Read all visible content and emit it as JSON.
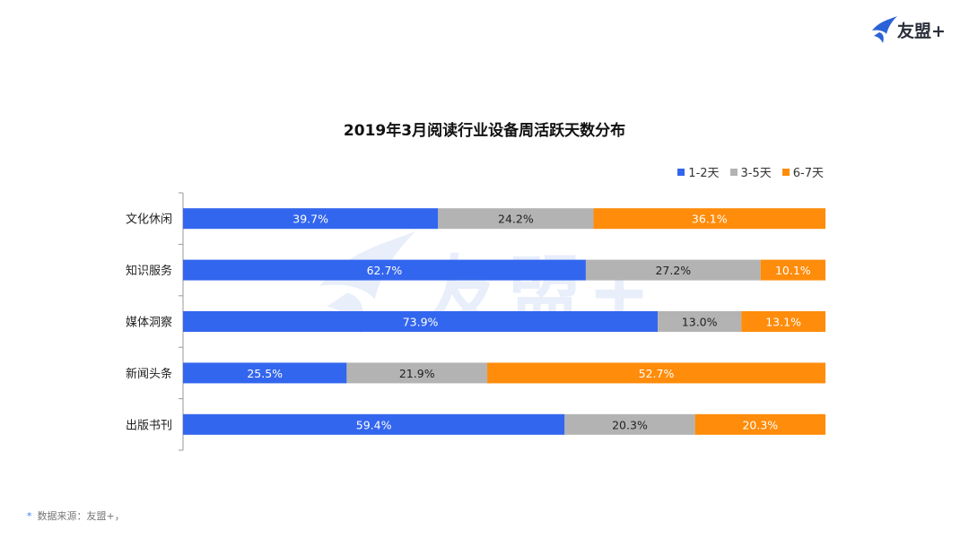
{
  "brand": {
    "name": "友盟+"
  },
  "watermark": {
    "text": "友盟+"
  },
  "legend": [
    {
      "label": "1-2天",
      "color": "#3366ee"
    },
    {
      "label": "3-5天",
      "color": "#b3b3b3"
    },
    {
      "label": "6-7天",
      "color": "#ff8c0a"
    }
  ],
  "footer": {
    "bullet": "*",
    "source": "数据来源：友盟+，"
  },
  "chart_data": {
    "type": "bar",
    "orientation": "horizontal",
    "stacked": true,
    "title": "2019年3月阅读行业设备周活跃天数分布",
    "categories": [
      "文化休闲",
      "知识服务",
      "媒体洞察",
      "新闻头条",
      "出版书刊"
    ],
    "series": [
      {
        "name": "1-2天",
        "color": "#3366ee",
        "values": [
          39.7,
          62.7,
          73.9,
          25.5,
          59.4
        ],
        "labels": [
          "39.7%",
          "62.7%",
          "73.9%",
          "25.5%",
          "59.4%"
        ],
        "label_color": "#ffffff"
      },
      {
        "name": "3-5天",
        "color": "#b3b3b3",
        "values": [
          24.2,
          27.2,
          13.0,
          21.9,
          20.3
        ],
        "labels": [
          "24.2%",
          "27.2%",
          "13.0%",
          "21.9%",
          "20.3%"
        ],
        "label_color": "#222222"
      },
      {
        "name": "6-7天",
        "color": "#ff8c0a",
        "values": [
          36.1,
          10.1,
          13.1,
          52.7,
          20.3
        ],
        "labels": [
          "36.1%",
          "10.1%",
          "13.1%",
          "52.7%",
          "20.3%"
        ],
        "label_color": "#ffffff"
      }
    ],
    "legend_position": "top-right",
    "grid": false
  }
}
